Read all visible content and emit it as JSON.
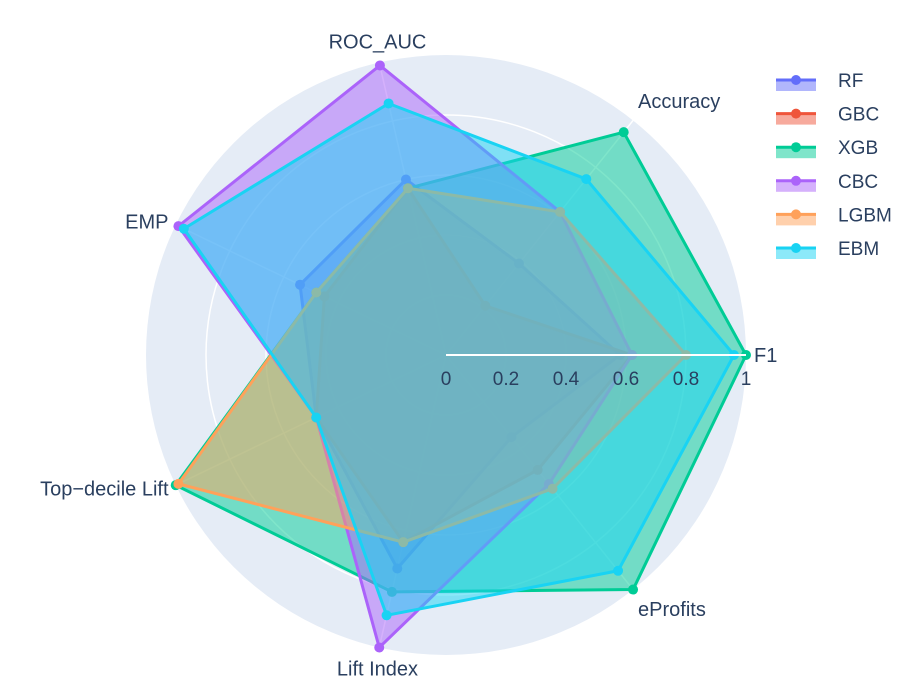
{
  "chart_data": {
    "type": "radar",
    "title": "",
    "axes": [
      "F1",
      "Accuracy",
      "ROC_AUC",
      "EMP",
      "Top−decile Lift",
      "Lift Index",
      "eProfits"
    ],
    "radial_range": [
      0,
      1
    ],
    "radial_ticks": [
      "0",
      "0.2",
      "0.4",
      "0.6",
      "0.8",
      "1"
    ],
    "legend_position": "top-right",
    "grid": true,
    "series": [
      {
        "name": "RF",
        "color": "#636efa",
        "values": [
          0.58,
          0.39,
          0.6,
          0.54,
          0.48,
          0.73,
          0.35
        ]
      },
      {
        "name": "GBC",
        "color": "#ef553b",
        "values": [
          0.62,
          0.21,
          0.57,
          0.45,
          0.48,
          0.64,
          0.49
        ]
      },
      {
        "name": "XGB",
        "color": "#00cc96",
        "values": [
          1.0,
          0.95,
          0.57,
          0.48,
          1.0,
          0.81,
          1.0
        ]
      },
      {
        "name": "CBC",
        "color": "#ab63fa",
        "values": [
          0.62,
          0.61,
          0.99,
          0.99,
          0.48,
          1.0,
          0.55
        ]
      },
      {
        "name": "LGBM",
        "color": "#ffa15a",
        "values": [
          0.8,
          0.61,
          0.57,
          0.48,
          0.99,
          0.64,
          0.57
        ]
      },
      {
        "name": "EBM",
        "color": "#19d3f3",
        "values": [
          0.96,
          0.75,
          0.86,
          0.97,
          0.48,
          0.89,
          0.92
        ]
      }
    ]
  }
}
